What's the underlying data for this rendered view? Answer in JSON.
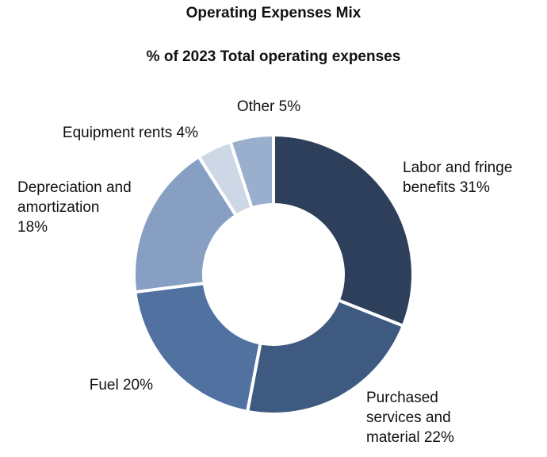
{
  "chart_data": {
    "type": "pie",
    "title": "Operating Expenses Mix",
    "subtitle": "% of 2023 Total operating expenses",
    "donut": true,
    "slices": [
      {
        "label": "Labor and fringe benefits",
        "value": 31,
        "display": "Labor and fringe benefits 31%",
        "color": "#2d3f5b"
      },
      {
        "label": "Purchased services and material",
        "value": 22,
        "display": "Purchased services and material 22%",
        "color": "#3f5a81"
      },
      {
        "label": "Fuel",
        "value": 20,
        "display": "Fuel 20%",
        "color": "#5172a0"
      },
      {
        "label": "Depreciation and amortization",
        "value": 18,
        "display": "Depreciation and amortization 18%",
        "color": "#879fc2"
      },
      {
        "label": "Equipment rents",
        "value": 4,
        "display": "Equipment rents 4%",
        "color": "#cdd7e6"
      },
      {
        "label": "Other",
        "value": 5,
        "display": "Other 5%",
        "color": "#9aaecd"
      }
    ]
  }
}
